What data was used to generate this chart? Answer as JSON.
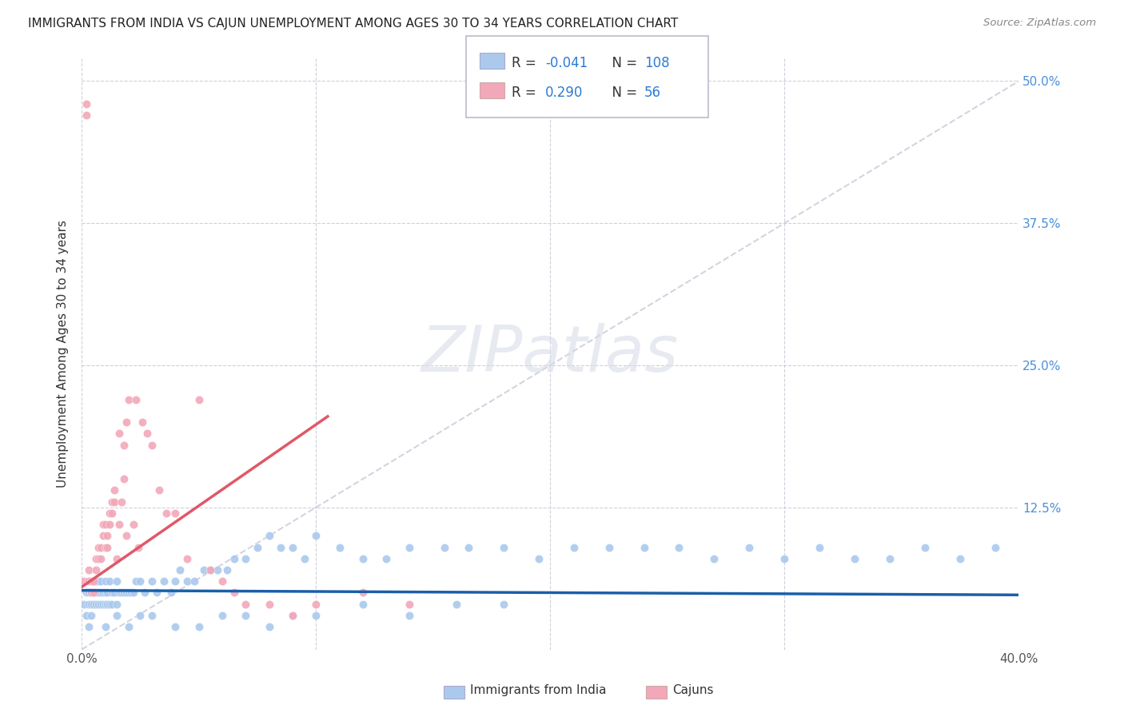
{
  "title": "IMMIGRANTS FROM INDIA VS CAJUN UNEMPLOYMENT AMONG AGES 30 TO 34 YEARS CORRELATION CHART",
  "source": "Source: ZipAtlas.com",
  "ylabel": "Unemployment Among Ages 30 to 34 years",
  "xlim": [
    0.0,
    0.4
  ],
  "ylim": [
    0.0,
    0.52
  ],
  "india_R": -0.041,
  "india_N": 108,
  "cajun_R": 0.29,
  "cajun_N": 56,
  "india_color": "#aac9ed",
  "cajun_color": "#f2a8b8",
  "india_line_color": "#1a5fa8",
  "cajun_line_color": "#e05868",
  "grid_color": "#d0d0dc",
  "dash_color": "#ccc8d8",
  "watermark_color": "#d8dce8",
  "india_x": [
    0.001,
    0.002,
    0.002,
    0.003,
    0.003,
    0.003,
    0.004,
    0.004,
    0.004,
    0.005,
    0.005,
    0.005,
    0.006,
    0.006,
    0.006,
    0.007,
    0.007,
    0.007,
    0.008,
    0.008,
    0.008,
    0.009,
    0.009,
    0.01,
    0.01,
    0.01,
    0.011,
    0.011,
    0.012,
    0.012,
    0.013,
    0.013,
    0.014,
    0.015,
    0.015,
    0.016,
    0.017,
    0.018,
    0.019,
    0.02,
    0.021,
    0.022,
    0.023,
    0.025,
    0.027,
    0.03,
    0.032,
    0.035,
    0.038,
    0.04,
    0.042,
    0.045,
    0.048,
    0.052,
    0.055,
    0.058,
    0.062,
    0.065,
    0.07,
    0.075,
    0.08,
    0.085,
    0.09,
    0.095,
    0.1,
    0.11,
    0.12,
    0.13,
    0.14,
    0.155,
    0.165,
    0.18,
    0.195,
    0.21,
    0.225,
    0.24,
    0.255,
    0.27,
    0.285,
    0.3,
    0.315,
    0.33,
    0.345,
    0.36,
    0.375,
    0.39,
    0.003,
    0.004,
    0.01,
    0.015,
    0.02,
    0.025,
    0.03,
    0.04,
    0.05,
    0.06,
    0.07,
    0.08,
    0.09,
    0.1,
    0.12,
    0.14,
    0.16,
    0.18
  ],
  "india_y": [
    0.04,
    0.05,
    0.03,
    0.05,
    0.04,
    0.06,
    0.04,
    0.05,
    0.06,
    0.04,
    0.05,
    0.06,
    0.04,
    0.05,
    0.06,
    0.04,
    0.05,
    0.06,
    0.04,
    0.05,
    0.06,
    0.04,
    0.05,
    0.04,
    0.05,
    0.06,
    0.04,
    0.05,
    0.04,
    0.06,
    0.04,
    0.05,
    0.05,
    0.04,
    0.06,
    0.05,
    0.05,
    0.05,
    0.05,
    0.05,
    0.05,
    0.05,
    0.06,
    0.06,
    0.05,
    0.06,
    0.05,
    0.06,
    0.05,
    0.06,
    0.07,
    0.06,
    0.06,
    0.07,
    0.07,
    0.07,
    0.07,
    0.08,
    0.08,
    0.09,
    0.1,
    0.09,
    0.09,
    0.08,
    0.1,
    0.09,
    0.08,
    0.08,
    0.09,
    0.09,
    0.09,
    0.09,
    0.08,
    0.09,
    0.09,
    0.09,
    0.09,
    0.08,
    0.09,
    0.08,
    0.09,
    0.08,
    0.08,
    0.09,
    0.08,
    0.09,
    0.02,
    0.03,
    0.02,
    0.03,
    0.02,
    0.03,
    0.03,
    0.02,
    0.02,
    0.03,
    0.03,
    0.02,
    0.03,
    0.03,
    0.04,
    0.03,
    0.04,
    0.04
  ],
  "cajun_x": [
    0.001,
    0.002,
    0.002,
    0.003,
    0.003,
    0.004,
    0.004,
    0.005,
    0.005,
    0.006,
    0.006,
    0.007,
    0.007,
    0.008,
    0.008,
    0.009,
    0.009,
    0.01,
    0.01,
    0.011,
    0.011,
    0.012,
    0.012,
    0.013,
    0.013,
    0.014,
    0.014,
    0.015,
    0.016,
    0.017,
    0.018,
    0.019,
    0.02,
    0.022,
    0.024,
    0.026,
    0.028,
    0.03,
    0.033,
    0.036,
    0.04,
    0.045,
    0.05,
    0.055,
    0.06,
    0.065,
    0.07,
    0.08,
    0.09,
    0.1,
    0.12,
    0.14,
    0.016,
    0.018,
    0.019,
    0.023
  ],
  "cajun_y": [
    0.06,
    0.48,
    0.47,
    0.06,
    0.07,
    0.05,
    0.06,
    0.05,
    0.06,
    0.07,
    0.08,
    0.08,
    0.09,
    0.08,
    0.09,
    0.1,
    0.11,
    0.09,
    0.11,
    0.09,
    0.1,
    0.11,
    0.12,
    0.13,
    0.12,
    0.13,
    0.14,
    0.08,
    0.11,
    0.13,
    0.15,
    0.1,
    0.22,
    0.11,
    0.09,
    0.2,
    0.19,
    0.18,
    0.14,
    0.12,
    0.12,
    0.08,
    0.22,
    0.07,
    0.06,
    0.05,
    0.04,
    0.04,
    0.03,
    0.04,
    0.05,
    0.04,
    0.19,
    0.18,
    0.2,
    0.22
  ],
  "india_line": {
    "x0": 0.0,
    "x1": 0.4,
    "y0": 0.052,
    "y1": 0.048
  },
  "cajun_line": {
    "x0": 0.0,
    "x1": 0.105,
    "y0": 0.055,
    "y1": 0.205
  },
  "dash_line": {
    "x0": 0.0,
    "x1": 0.4,
    "y0": 0.0,
    "y1": 0.5
  }
}
